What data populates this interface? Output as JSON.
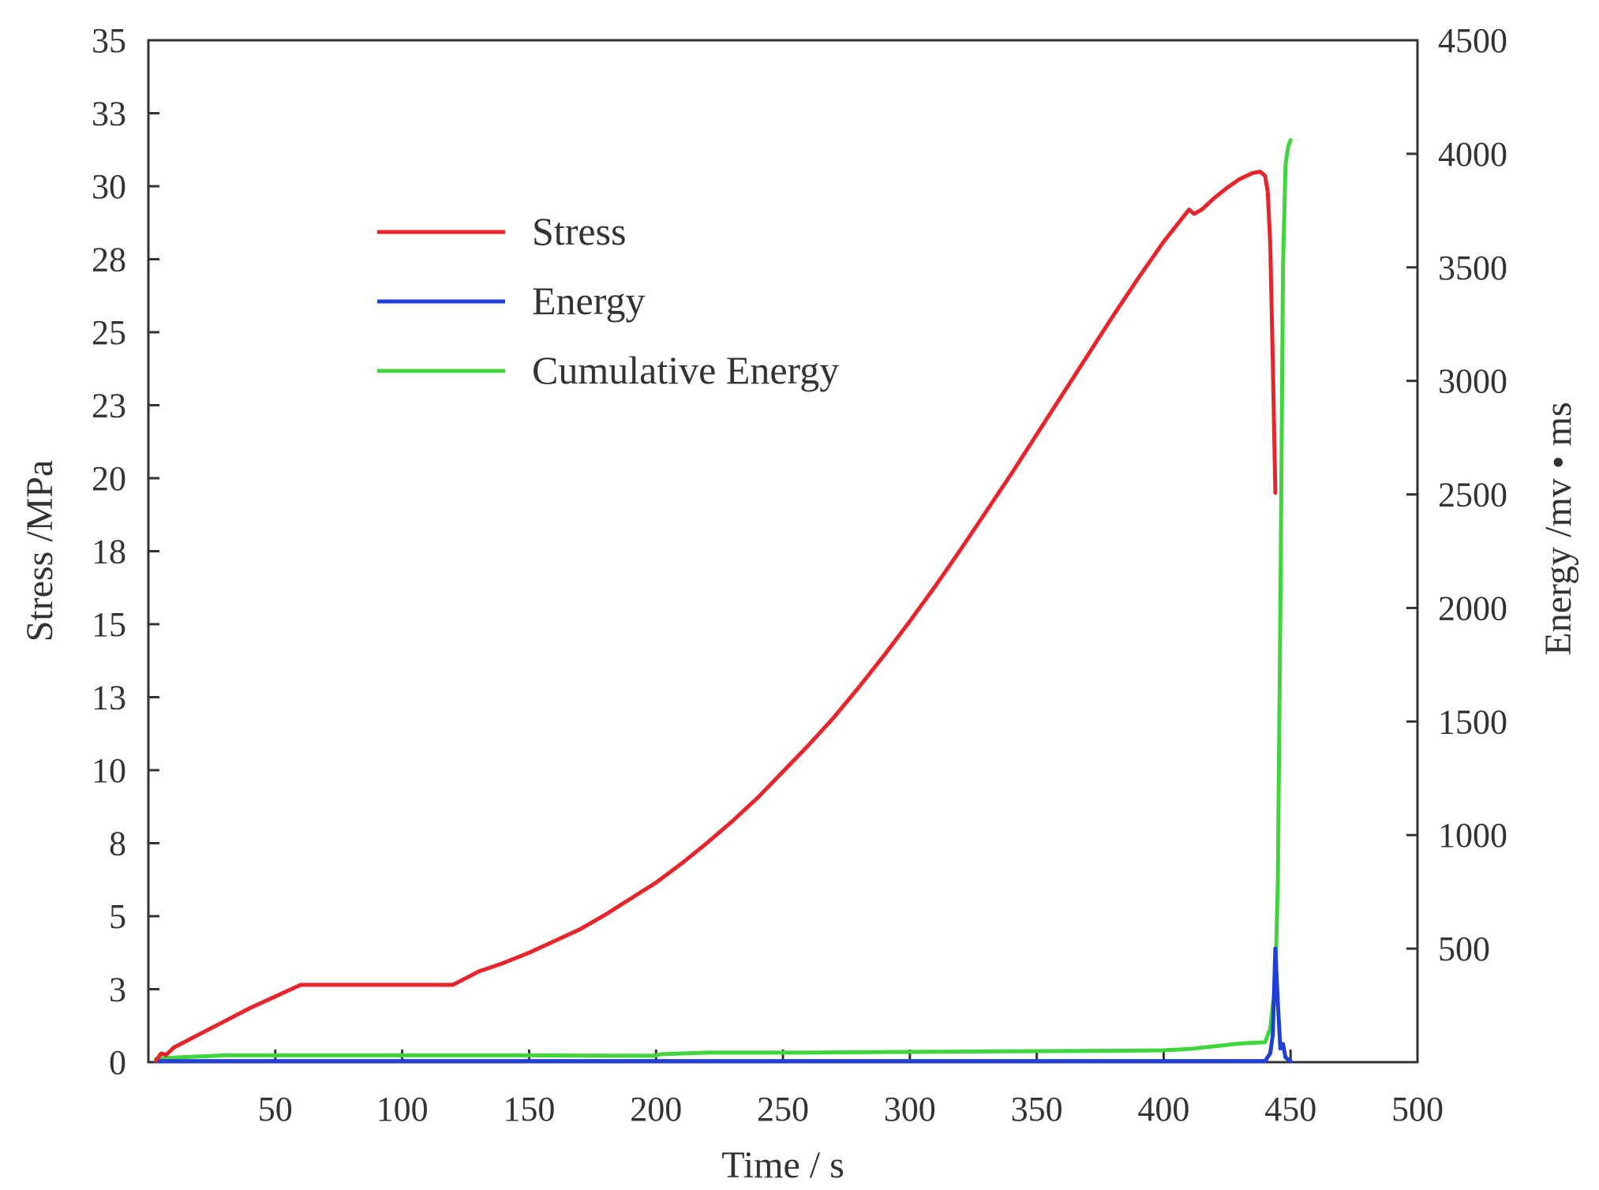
{
  "chart_data": {
    "type": "line",
    "title": "",
    "xlabel": "Time / s",
    "ylabel_left": "Stress /MPa",
    "ylabel_right": "Energy /mv • ms",
    "xlim": [
      0,
      500
    ],
    "ylim_left": [
      0,
      35
    ],
    "ylim_right": [
      0,
      4500
    ],
    "x_ticks": [
      "50",
      "100",
      "150",
      "200",
      "250",
      "300",
      "350",
      "400",
      "450",
      "500"
    ],
    "x_tick_values": [
      50,
      100,
      150,
      200,
      250,
      300,
      350,
      400,
      450,
      500
    ],
    "y_left_ticks": [
      "0",
      "3",
      "5",
      "8",
      "10",
      "13",
      "15",
      "18",
      "20",
      "23",
      "25",
      "28",
      "30",
      "33",
      "35"
    ],
    "y_left_tick_values": [
      0,
      2.5,
      5,
      7.5,
      10,
      12.5,
      15,
      17.5,
      20,
      22.5,
      25,
      27.5,
      30,
      32.5,
      35
    ],
    "y_right_ticks": [
      "500",
      "1000",
      "1500",
      "2000",
      "2500",
      "3000",
      "3500",
      "4000",
      "4500"
    ],
    "y_right_tick_values": [
      500,
      1000,
      1500,
      2000,
      2500,
      3000,
      3500,
      4000,
      4500
    ],
    "grid": false,
    "legend_position": "top-left",
    "series": [
      {
        "name": "Stress",
        "axis": "left",
        "color": "#e8242a",
        "x": [
          3,
          5,
          7,
          10,
          20,
          30,
          40,
          50,
          60,
          80,
          100,
          120,
          130,
          140,
          150,
          160,
          170,
          180,
          190,
          200,
          210,
          220,
          230,
          240,
          250,
          260,
          270,
          280,
          290,
          300,
          310,
          320,
          330,
          340,
          350,
          360,
          370,
          380,
          390,
          400,
          410,
          412,
          415,
          420,
          425,
          430,
          435,
          438,
          440,
          441,
          442,
          443,
          444
        ],
        "values": [
          0.05,
          0.3,
          0.25,
          0.5,
          0.95,
          1.4,
          1.85,
          2.25,
          2.65,
          2.65,
          2.65,
          2.65,
          3.1,
          3.4,
          3.75,
          4.15,
          4.55,
          5.05,
          5.6,
          6.15,
          6.8,
          7.5,
          8.25,
          9.05,
          9.95,
          10.85,
          11.8,
          12.85,
          13.95,
          15.1,
          16.3,
          17.55,
          18.85,
          20.15,
          21.5,
          22.85,
          24.2,
          25.55,
          26.85,
          28.1,
          29.2,
          29.05,
          29.2,
          29.6,
          29.95,
          30.25,
          30.45,
          30.5,
          30.35,
          29.8,
          28.0,
          24.0,
          19.5
        ]
      },
      {
        "name": "Energy",
        "axis": "right",
        "color": "#1f3fd8",
        "x": [
          3,
          100,
          200,
          300,
          400,
          440,
          442,
          443,
          444,
          445,
          446,
          447,
          448,
          450
        ],
        "values": [
          5,
          5,
          5,
          5,
          5,
          5,
          40,
          120,
          500,
          260,
          60,
          80,
          20,
          5
        ]
      },
      {
        "name": "Cumulative Energy",
        "axis": "right",
        "color": "#3fd63b",
        "x": [
          3,
          10,
          30,
          60,
          100,
          150,
          199,
          202,
          220,
          260,
          300,
          340,
          380,
          400,
          410,
          420,
          430,
          440,
          442,
          443,
          444,
          445,
          446,
          447,
          448,
          449,
          450
        ],
        "values": [
          15,
          20,
          30,
          30,
          30,
          30,
          28,
          35,
          42,
          42,
          45,
          48,
          50,
          52,
          58,
          70,
          82,
          88,
          150,
          250,
          350,
          800,
          2000,
          3500,
          3950,
          4030,
          4060
        ]
      }
    ]
  }
}
